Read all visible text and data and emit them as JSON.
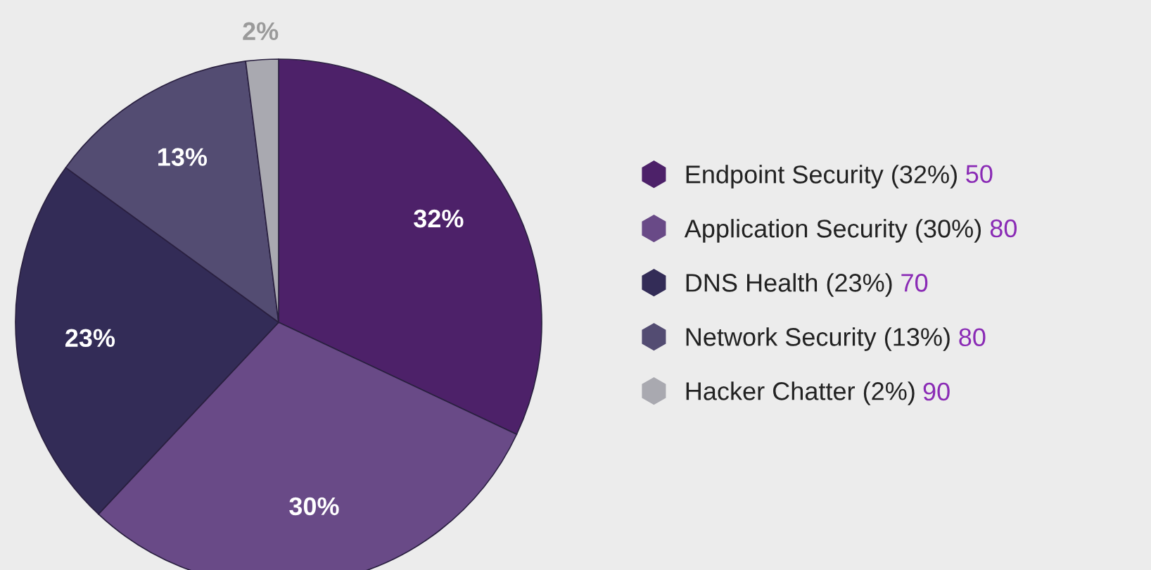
{
  "chart_data": {
    "type": "pie",
    "categories": [
      "Endpoint Security (32%)",
      "Application Security (30%)",
      "DNS Health (23%)",
      "Network Security (13%)",
      "Hacker Chatter (2%)"
    ],
    "values": [
      32,
      30,
      23,
      13,
      2
    ],
    "colors": [
      "#4d2169",
      "#694a87",
      "#332c57",
      "#534c72",
      "#a9a9b0"
    ],
    "value_labels": [
      "32%",
      "30%",
      "23%",
      "13%",
      "2%"
    ],
    "legend": "right",
    "annotations": [
      "50",
      "80",
      "70",
      "80",
      "90"
    ]
  }
}
